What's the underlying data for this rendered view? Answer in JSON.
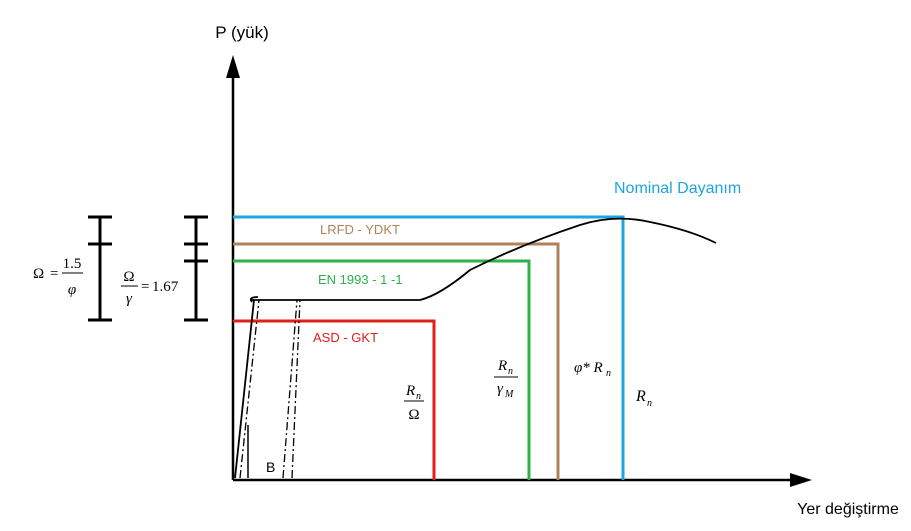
{
  "axes": {
    "y_label": "P (yük)",
    "x_label": "Yer değiştirme"
  },
  "labels": {
    "nominal": "Nominal Dayanım",
    "lrfd": "LRFD - YDKT",
    "en": "EN 1993 - 1 -1",
    "asd": "ASD - GKT",
    "b": "B"
  },
  "formulas": {
    "omega_phi": {
      "lhs": "Ω",
      "eq": "=",
      "num": "1.5",
      "den": "φ"
    },
    "omega_gamma": {
      "num": "Ω",
      "den": "γ",
      "eq": "=",
      "rhs": "1.67"
    },
    "rn_omega": {
      "num": "R",
      "num_sub": "n",
      "den": "Ω"
    },
    "rn_gamma": {
      "num": "R",
      "num_sub": "n",
      "den": "γ",
      "den_sub": "M"
    },
    "phi_rn": {
      "text": "φ* R",
      "sub": "n"
    },
    "rn": {
      "text": "R",
      "sub": "n"
    }
  }
}
